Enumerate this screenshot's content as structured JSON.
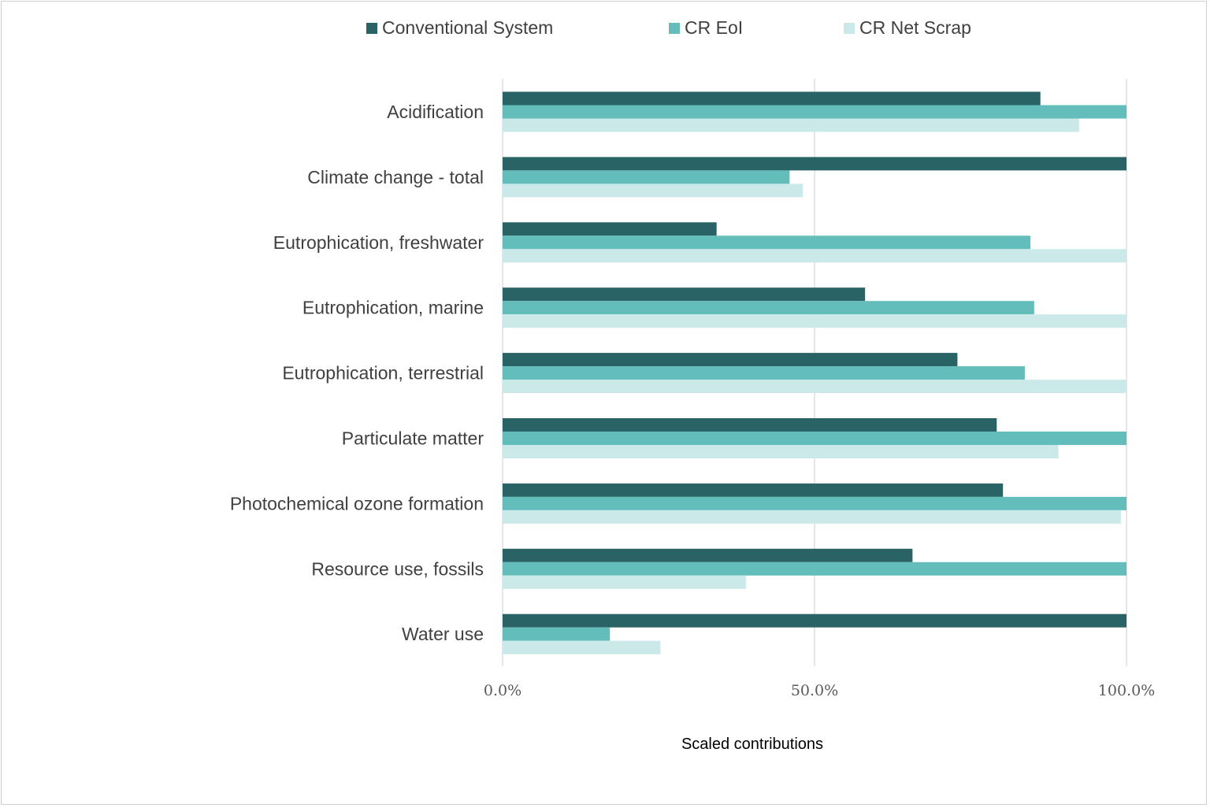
{
  "chart_data": {
    "type": "bar",
    "orientation": "horizontal",
    "title": "",
    "xlabel": "Scaled contributions",
    "ylabel": "",
    "xlim": [
      0,
      100
    ],
    "x_ticks": [
      0,
      50,
      100
    ],
    "x_tick_labels": [
      "0.0%",
      "50.0%",
      "100.0%"
    ],
    "grid": "vertical",
    "legend_position": "top",
    "categories": [
      "Acidification",
      "Climate change - total",
      "Eutrophication, freshwater",
      "Eutrophication, marine",
      "Eutrophication, terrestrial",
      "Particulate matter",
      "Photochemical ozone formation",
      "Resource use, fossils",
      "Water use"
    ],
    "series": [
      {
        "name": "Conventional System",
        "color": "#2a6365",
        "values": [
          86.2,
          100,
          34.3,
          58.1,
          72.9,
          79.2,
          80.2,
          65.7,
          100
        ]
      },
      {
        "name": "CR EoI",
        "color": "#62bdbb",
        "values": [
          100,
          46.0,
          84.6,
          85.2,
          83.7,
          100,
          100,
          100,
          17.2
        ]
      },
      {
        "name": "CR Net Scrap",
        "color": "#cbe9e9",
        "values": [
          92.4,
          48.1,
          100,
          100,
          100,
          89.1,
          99.1,
          39.0,
          25.3
        ]
      }
    ]
  }
}
